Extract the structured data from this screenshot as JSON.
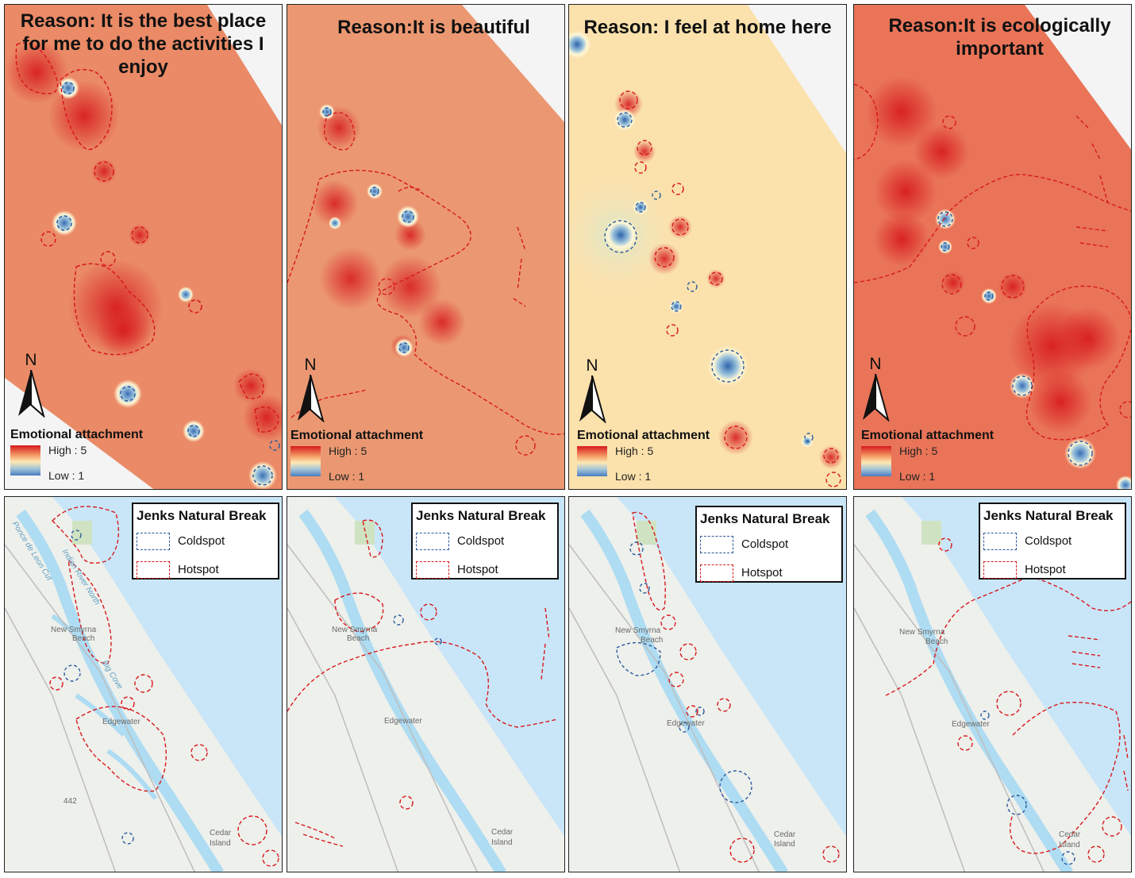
{
  "colors": {
    "hot": "#d7191c",
    "cold": "#2b5a9c",
    "water": "#c9e6f8",
    "land": "#eef0ec",
    "green": "#cfe3c2"
  },
  "heat_legend": {
    "title": "Emotional attachment",
    "high": "High : 5",
    "low": "Low : 1"
  },
  "north_label": "N",
  "jenks_legend": {
    "title": "Jenks Natural Break",
    "coldspot": "Coldspot",
    "hotspot": "Hotspot"
  },
  "panels": [
    {
      "title": "Reason: It is the best place for me to do the activities I enjoy"
    },
    {
      "title": "Reason:It is beautiful"
    },
    {
      "title": "Reason: I feel at home here"
    },
    {
      "title": "Reason:It is ecologically important"
    }
  ],
  "map_labels": {
    "new_smyrna": "New Smyrna",
    "beach": "Beach",
    "edgewater": "Edgewater",
    "cedar": "Cedar",
    "island": "Island",
    "big_cove": "Big Cove",
    "leon_cut": "Ponce de Leon Cut",
    "indian_river": "Indian River North",
    "route": "442"
  }
}
